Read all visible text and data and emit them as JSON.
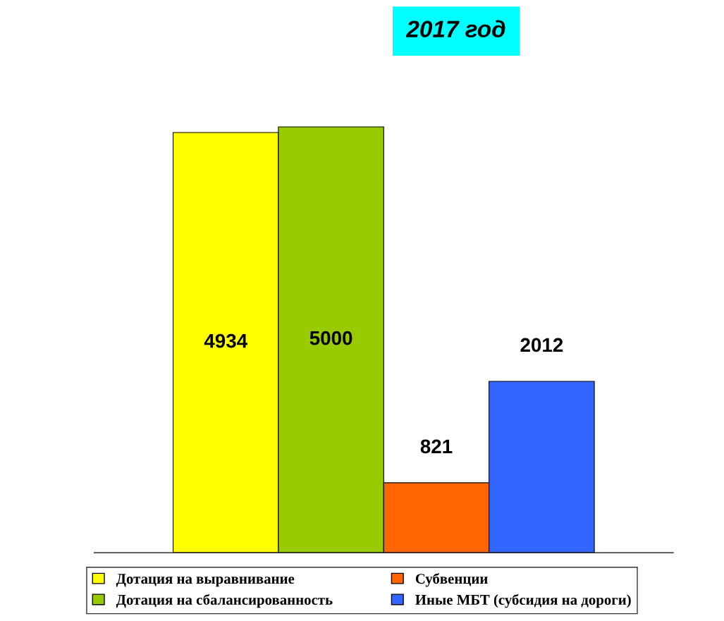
{
  "chart_data": {
    "type": "bar",
    "title": "2017 год",
    "categories": [
      null
    ],
    "series": [
      {
        "name": "Дотация на выравнивание",
        "color": "#ffff00",
        "values": [
          4934
        ]
      },
      {
        "name": "Дотация на сбалансированность",
        "color": "#99cc00",
        "values": [
          5000
        ]
      },
      {
        "name": "Субвенции",
        "color": "#ff6600",
        "values": [
          821
        ]
      },
      {
        "name": "Иные МБТ (субсидия на дороги)",
        "color": "#3366ff",
        "values": [
          2012
        ]
      }
    ],
    "data_labels": true,
    "legend": "bottom",
    "grid": false,
    "tick_labels": false
  }
}
